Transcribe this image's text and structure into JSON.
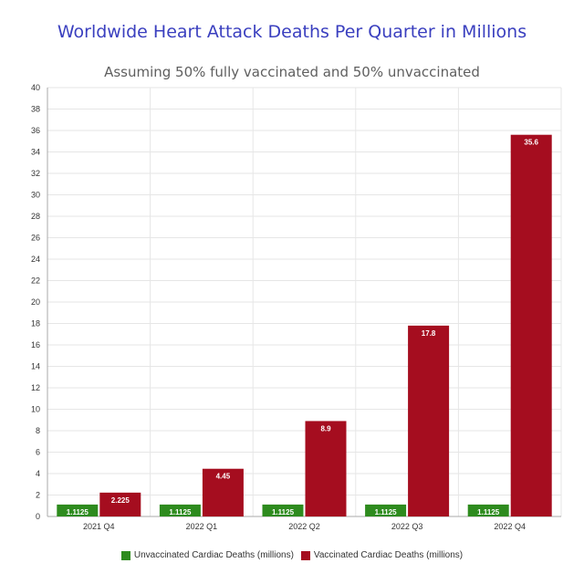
{
  "chart_data": {
    "type": "bar",
    "title": "Worldwide Heart Attack Deaths Per Quarter in Millions",
    "subtitle": "Assuming 50% fully vaccinated and 50% unvaccinated",
    "categories": [
      "2021 Q4",
      "2022 Q1",
      "2022 Q2",
      "2022 Q3",
      "2022 Q4"
    ],
    "series": [
      {
        "name": "Unvaccinated Cardiac Deaths (millions)",
        "color": "#2e8b1e",
        "values": [
          1.1125,
          1.1125,
          1.1125,
          1.1125,
          1.1125
        ],
        "labels": [
          "1.1125",
          "1.1125",
          "1.1125",
          "1.1125",
          "1.1125"
        ]
      },
      {
        "name": "Vaccinated Cardiac Deaths (millions)",
        "color": "#a50d1f",
        "values": [
          2.225,
          4.45,
          8.9,
          17.8,
          35.6
        ],
        "labels": [
          "2.225",
          "4.45",
          "8.9",
          "17.8",
          "35.6"
        ]
      }
    ],
    "ylim": [
      0,
      40
    ],
    "yticks": [
      "0",
      "2",
      "4",
      "6",
      "8",
      "10",
      "12",
      "14",
      "16",
      "18",
      "20",
      "22",
      "24",
      "26",
      "28",
      "30",
      "32",
      "34",
      "36",
      "38",
      "40"
    ],
    "xlabel": "",
    "ylabel": "",
    "grid": true,
    "legend_position": "bottom-center"
  }
}
